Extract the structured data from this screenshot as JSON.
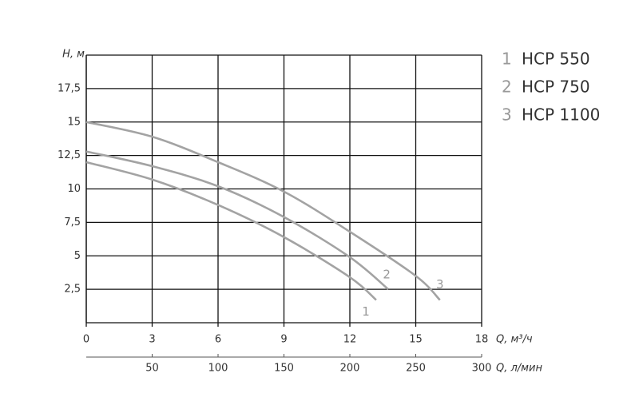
{
  "chart_data": {
    "type": "line",
    "ylabel": "H, м",
    "xlabel": "Q, м³/ч",
    "x2label": "Q, л/мин",
    "xlim": [
      0,
      18
    ],
    "xticks": [
      0,
      3,
      6,
      9,
      12,
      15,
      18
    ],
    "x2lim": [
      0,
      300
    ],
    "x2ticks": [
      50,
      100,
      150,
      200,
      250,
      300
    ],
    "ylim": [
      0,
      20
    ],
    "yticks": [
      {
        "value": 2.5,
        "label": "2,5"
      },
      5,
      {
        "value": 7.5,
        "label": "7,5"
      },
      10,
      {
        "value": 12.5,
        "label": "12,5"
      },
      15,
      {
        "value": 17.5,
        "label": "17,5"
      }
    ],
    "grid": true,
    "series": [
      {
        "label": "1",
        "name": "HCP 550",
        "color": "#a3a3a3",
        "x": [
          0,
          3,
          6,
          9,
          12,
          13.2
        ],
        "values": [
          12,
          10.7,
          8.8,
          6.4,
          3.4,
          1.7
        ]
      },
      {
        "label": "2",
        "name": "HCP 750",
        "color": "#a3a3a3",
        "x": [
          0,
          3,
          6,
          9,
          12,
          13.75
        ],
        "values": [
          12.8,
          11.7,
          10.2,
          7.9,
          4.9,
          2.5
        ]
      },
      {
        "label": "3",
        "name": "HCP 1100",
        "color": "#a3a3a3",
        "x": [
          0,
          3,
          6,
          9,
          12,
          15,
          16.1
        ],
        "values": [
          15,
          13.9,
          12,
          9.8,
          6.8,
          3.5,
          1.7
        ]
      }
    ]
  }
}
